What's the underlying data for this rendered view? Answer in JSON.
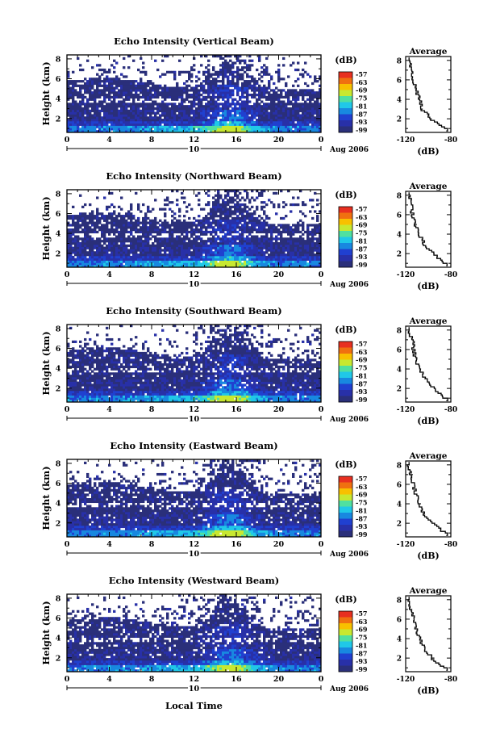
{
  "chart_data": {
    "type": "heatmap",
    "common": {
      "xlabel": "Local Time",
      "x_ticks": [
        "0",
        "4",
        "8",
        "12",
        "16",
        "20",
        "0"
      ],
      "x_range_hours": [
        0,
        24
      ],
      "date_marker": {
        "label": "10",
        "position_hour": 12
      },
      "date_label": "Aug 2006",
      "ylabel": "Height (km)",
      "y_ticks": [
        "2",
        "4",
        "6",
        "8"
      ],
      "y_range_km": [
        0.6,
        8.4
      ],
      "colorbar": {
        "unit": "(dB)",
        "labels": [
          "-57",
          "-63",
          "-69",
          "-75",
          "-81",
          "-87",
          "-93",
          "-99"
        ],
        "colors": [
          "#e83020",
          "#f07010",
          "#f8c000",
          "#c8e830",
          "#50e0a0",
          "#20c8e8",
          "#1888e0",
          "#2040d0",
          "#2830a8",
          "#2a2f7a"
        ]
      },
      "average_panel": {
        "title": "Average",
        "xlabel": "(dB)",
        "x_ticks": [
          "-120",
          "-80"
        ],
        "x_range": [
          -120,
          -80
        ],
        "y_ticks": [
          "2",
          "4",
          "6",
          "8"
        ]
      }
    },
    "panels": [
      {
        "title": "Echo Intensity (Vertical Beam)",
        "average_profile": {
          "height_km": [
            1,
            2,
            3,
            4,
            5,
            6,
            7,
            8
          ],
          "db": [
            -84,
            -97,
            -105,
            -107,
            -111,
            -113,
            -114,
            -117
          ]
        }
      },
      {
        "title": "Echo Intensity (Northward Beam)",
        "average_profile": {
          "height_km": [
            1,
            2,
            3,
            4,
            5,
            6,
            7,
            8
          ],
          "db": [
            -84,
            -95,
            -103,
            -108,
            -111,
            -114,
            -115,
            -117
          ]
        }
      },
      {
        "title": "Echo Intensity (Southward Beam)",
        "average_profile": {
          "height_km": [
            1,
            2,
            3,
            4,
            5,
            6,
            7,
            8
          ],
          "db": [
            -84,
            -94,
            -102,
            -107,
            -111,
            -113,
            -114,
            -117
          ]
        }
      },
      {
        "title": "Echo Intensity (Eastward Beam)",
        "average_profile": {
          "height_km": [
            1,
            2,
            3,
            4,
            5,
            6,
            7,
            8
          ],
          "db": [
            -84,
            -95,
            -104,
            -107,
            -111,
            -113,
            -115,
            -117
          ]
        }
      },
      {
        "title": "Echo Intensity (Westward Beam)",
        "average_profile": {
          "height_km": [
            1,
            2,
            3,
            4,
            5,
            6,
            7,
            8
          ],
          "db": [
            -84,
            -96,
            -103,
            -107,
            -111,
            -113,
            -115,
            -117
          ]
        }
      }
    ]
  }
}
